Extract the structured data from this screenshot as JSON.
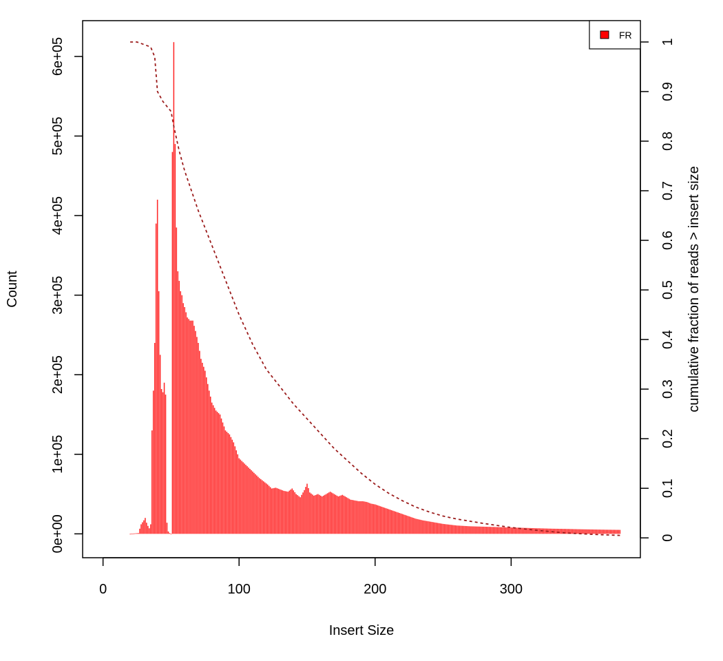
{
  "chart_data": {
    "type": "bar",
    "title": "",
    "xlabel": "Insert Size",
    "ylabel": "Count",
    "y2label": "cumulative fraction of reads > insert size",
    "xlim": [
      -15,
      395
    ],
    "ylim": [
      -30000,
      645000
    ],
    "y2lim": [
      -0.04,
      1.043
    ],
    "x_ticks": [
      0,
      100,
      200,
      300
    ],
    "x_tick_labels": [
      "0",
      "100",
      "200",
      "300"
    ],
    "y_ticks": [
      0,
      100000,
      200000,
      300000,
      400000,
      500000,
      600000
    ],
    "y_tick_labels": [
      "0e+00",
      "1e+05",
      "2e+05",
      "3e+05",
      "4e+05",
      "5e+05",
      "6e+05"
    ],
    "y2_ticks": [
      0,
      0.1,
      0.2,
      0.3,
      0.4,
      0.5,
      0.6,
      0.7,
      0.8,
      0.9,
      1
    ],
    "y2_tick_labels": [
      "0",
      "0.1",
      "0.2",
      "0.3",
      "0.4",
      "0.5",
      "0.6",
      "0.7",
      "0.8",
      "0.9",
      "1"
    ],
    "grid": false,
    "legend": {
      "position": "top-right",
      "entries": [
        "FR"
      ]
    },
    "bar_color": "#ff0000",
    "line_color": "#9b1b1b",
    "series": [
      {
        "name": "FR",
        "kind": "bar",
        "points": [
          [
            20,
            0
          ],
          [
            26,
            1000
          ],
          [
            28,
            12000
          ],
          [
            30,
            17000
          ],
          [
            31,
            20000
          ],
          [
            32,
            14000
          ],
          [
            33,
            10000
          ],
          [
            34,
            7000
          ],
          [
            35,
            12000
          ],
          [
            36,
            130000
          ],
          [
            37,
            180000
          ],
          [
            38,
            240000
          ],
          [
            39,
            390000
          ],
          [
            40,
            420000
          ],
          [
            41,
            305000
          ],
          [
            42,
            225000
          ],
          [
            43,
            182000
          ],
          [
            44,
            178000
          ],
          [
            45,
            190000
          ],
          [
            46,
            175000
          ],
          [
            47,
            14000
          ],
          [
            48,
            3000
          ],
          [
            49,
            1000
          ],
          [
            50,
            0
          ],
          [
            51,
            480000
          ],
          [
            52,
            618000
          ],
          [
            53,
            490000
          ],
          [
            54,
            385000
          ],
          [
            55,
            330000
          ],
          [
            56,
            318000
          ],
          [
            57,
            305000
          ],
          [
            58,
            300000
          ],
          [
            59,
            290000
          ],
          [
            60,
            285000
          ],
          [
            62,
            272000
          ],
          [
            64,
            268000
          ],
          [
            66,
            268000
          ],
          [
            68,
            255000
          ],
          [
            70,
            240000
          ],
          [
            72,
            220000
          ],
          [
            75,
            205000
          ],
          [
            78,
            180000
          ],
          [
            80,
            165000
          ],
          [
            83,
            155000
          ],
          [
            86,
            150000
          ],
          [
            88,
            140000
          ],
          [
            90,
            130000
          ],
          [
            93,
            125000
          ],
          [
            96,
            115000
          ],
          [
            98,
            105000
          ],
          [
            100,
            95000
          ],
          [
            103,
            90000
          ],
          [
            106,
            85000
          ],
          [
            109,
            80000
          ],
          [
            112,
            75000
          ],
          [
            115,
            70000
          ],
          [
            118,
            66000
          ],
          [
            121,
            62000
          ],
          [
            124,
            57000
          ],
          [
            127,
            58000
          ],
          [
            130,
            56000
          ],
          [
            133,
            54000
          ],
          [
            136,
            53000
          ],
          [
            139,
            57000
          ],
          [
            142,
            50000
          ],
          [
            145,
            46000
          ],
          [
            148,
            55000
          ],
          [
            150,
            63000
          ],
          [
            152,
            52000
          ],
          [
            155,
            48000
          ],
          [
            158,
            50000
          ],
          [
            161,
            47000
          ],
          [
            164,
            50000
          ],
          [
            167,
            53000
          ],
          [
            170,
            50000
          ],
          [
            173,
            47000
          ],
          [
            176,
            49000
          ],
          [
            179,
            46000
          ],
          [
            182,
            43000
          ],
          [
            185,
            42000
          ],
          [
            188,
            41000
          ],
          [
            191,
            41000
          ],
          [
            194,
            40000
          ],
          [
            197,
            38000
          ],
          [
            200,
            37000
          ],
          [
            205,
            34000
          ],
          [
            210,
            31000
          ],
          [
            215,
            28000
          ],
          [
            220,
            25000
          ],
          [
            225,
            22000
          ],
          [
            230,
            19000
          ],
          [
            235,
            17000
          ],
          [
            240,
            15500
          ],
          [
            245,
            14000
          ],
          [
            250,
            12500
          ],
          [
            255,
            11500
          ],
          [
            260,
            10500
          ],
          [
            270,
            9500
          ],
          [
            280,
            9000
          ],
          [
            290,
            8500
          ],
          [
            300,
            8000
          ],
          [
            310,
            7500
          ],
          [
            320,
            7000
          ],
          [
            330,
            6500
          ],
          [
            340,
            6200
          ],
          [
            350,
            5800
          ],
          [
            360,
            5500
          ],
          [
            370,
            5200
          ],
          [
            380,
            5000
          ]
        ]
      },
      {
        "name": "",
        "kind": "line",
        "style": "dashed",
        "points": [
          [
            20,
            1.0
          ],
          [
            25,
            1.0
          ],
          [
            30,
            0.995
          ],
          [
            35,
            0.99
          ],
          [
            38,
            0.97
          ],
          [
            40,
            0.9
          ],
          [
            44,
            0.88
          ],
          [
            50,
            0.86
          ],
          [
            52,
            0.83
          ],
          [
            56,
            0.78
          ],
          [
            60,
            0.74
          ],
          [
            70,
            0.66
          ],
          [
            80,
            0.59
          ],
          [
            90,
            0.52
          ],
          [
            100,
            0.45
          ],
          [
            110,
            0.39
          ],
          [
            120,
            0.34
          ],
          [
            130,
            0.305
          ],
          [
            140,
            0.27
          ],
          [
            150,
            0.24
          ],
          [
            160,
            0.21
          ],
          [
            170,
            0.18
          ],
          [
            180,
            0.155
          ],
          [
            190,
            0.13
          ],
          [
            200,
            0.108
          ],
          [
            210,
            0.09
          ],
          [
            220,
            0.075
          ],
          [
            230,
            0.062
          ],
          [
            240,
            0.052
          ],
          [
            250,
            0.044
          ],
          [
            260,
            0.038
          ],
          [
            280,
            0.029
          ],
          [
            300,
            0.021
          ],
          [
            320,
            0.015
          ],
          [
            340,
            0.01
          ],
          [
            360,
            0.007
          ],
          [
            380,
            0.005
          ]
        ]
      }
    ]
  }
}
